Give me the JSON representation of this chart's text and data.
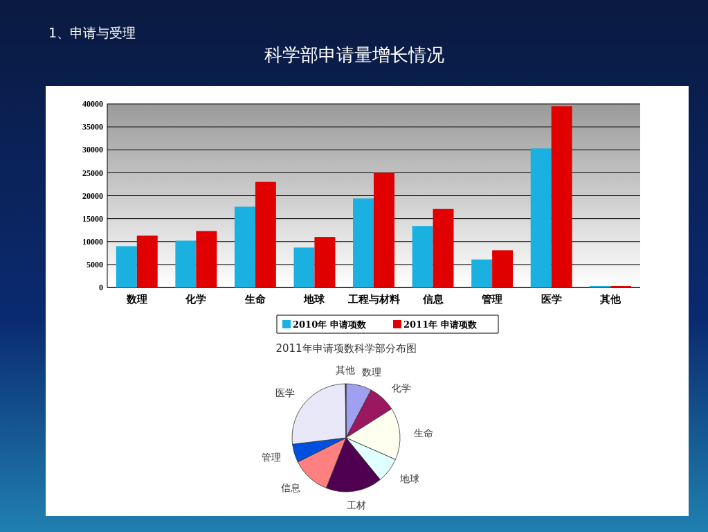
{
  "chart_data": [
    {
      "type": "bar",
      "title": "科学部申请量增长情况",
      "annotations": [
        "1、申请与受理"
      ],
      "categories": [
        "数理",
        "化学",
        "生命",
        "地球",
        "工程与材料",
        "信息",
        "管理",
        "医学",
        "其他"
      ],
      "series": [
        {
          "name": "2010年 申请项数",
          "color": "#1ab0e0",
          "values": [
            9000,
            10200,
            17600,
            8700,
            19400,
            13400,
            6100,
            30300,
            300
          ]
        },
        {
          "name": "2011年 申请项数",
          "color": "#e00000",
          "values": [
            11300,
            12300,
            23000,
            11000,
            25000,
            17100,
            8100,
            39500,
            300
          ]
        }
      ],
      "ylim": [
        0,
        40000
      ],
      "yticks": [
        0,
        5000,
        10000,
        15000,
        20000,
        25000,
        30000,
        35000,
        40000
      ],
      "grid": "y",
      "legend": "bottom"
    },
    {
      "type": "pie",
      "title": "2011年申请项数科学部分布图",
      "categories": [
        "数理",
        "化学",
        "生命",
        "地球",
        "工材",
        "信息",
        "管理",
        "医学",
        "其他"
      ],
      "values": [
        7.7,
        8.3,
        15.6,
        7.5,
        16.9,
        11.6,
        5.5,
        26.7,
        0.2
      ],
      "colors": [
        "#a0a0f0",
        "#991860",
        "#fffff0",
        "#e0ffff",
        "#500050",
        "#ff8080",
        "#0050e0",
        "#e8e8f8",
        "#000060"
      ]
    }
  ]
}
